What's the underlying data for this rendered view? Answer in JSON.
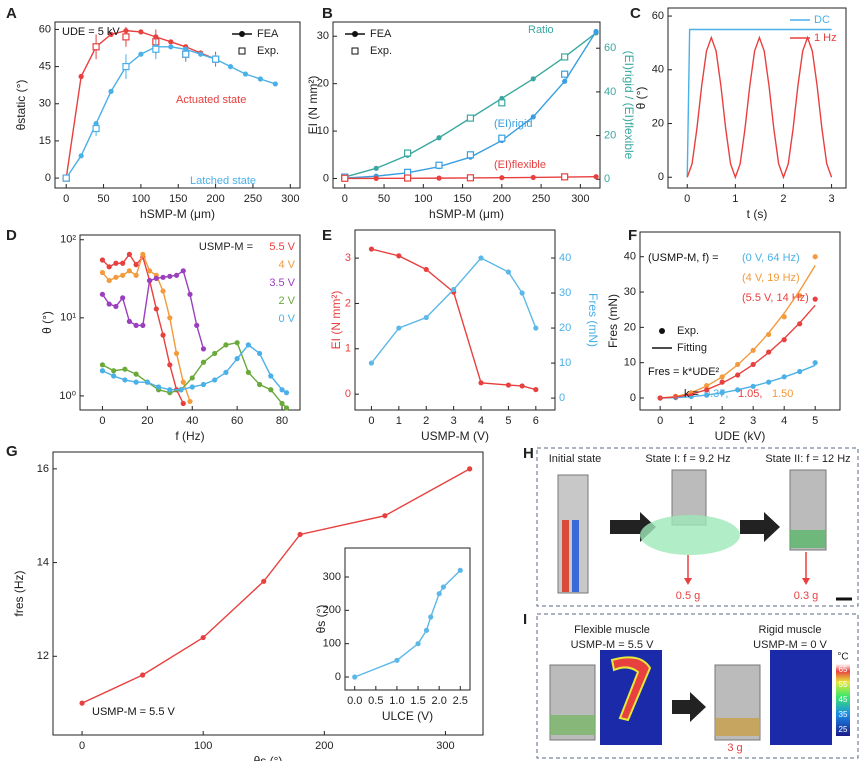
{
  "chart_data": [
    {
      "type": "line",
      "label": "A",
      "xlabel": "hSMP-M (μm)",
      "ylabel": "θstatic (°)",
      "xlim": [
        -15,
        313
      ],
      "ylim": [
        -4,
        63
      ],
      "xticks": [
        0,
        50,
        100,
        150,
        200,
        250,
        300
      ],
      "yticks": [
        0,
        15,
        30,
        45,
        60
      ],
      "legend": "upper right",
      "legend_entries": [
        "FEA",
        "Exp."
      ],
      "annotations": [
        "UDE = 5 kV",
        "Actuated state",
        "Latched state"
      ],
      "series": [
        {
          "color": "#e8403f",
          "marker": "circle",
          "line": true,
          "x": [
            0,
            20,
            40,
            60,
            80,
            100,
            120,
            140,
            160,
            180,
            200
          ],
          "values": [
            0,
            41,
            53,
            58,
            59.5,
            59,
            57,
            55,
            53,
            50.5,
            48
          ]
        },
        {
          "color": "#e8403f",
          "marker": "square",
          "line": false,
          "x": [
            0,
            40,
            80,
            120,
            160,
            200
          ],
          "values": [
            0,
            53,
            57,
            55,
            50,
            48
          ],
          "errors": [
            0,
            5,
            4,
            5,
            3,
            3
          ]
        },
        {
          "color": "#4ab0e8",
          "marker": "circle",
          "line": true,
          "x": [
            0,
            20,
            40,
            60,
            80,
            100,
            120,
            140,
            160,
            180,
            200,
            220,
            240,
            260,
            280
          ],
          "values": [
            0,
            9,
            22,
            35,
            45,
            50,
            53,
            53,
            52,
            50,
            48,
            45,
            42,
            40,
            38
          ]
        },
        {
          "color": "#4ab0e8",
          "marker": "square",
          "line": false,
          "x": [
            0,
            40,
            80,
            120,
            160,
            200
          ],
          "values": [
            0,
            20,
            45,
            52,
            50,
            48
          ],
          "errors": [
            0,
            3,
            5,
            4,
            3,
            2
          ]
        }
      ]
    },
    {
      "type": "line",
      "label": "B",
      "xlabel": "hSMP-M (μm)",
      "ylabel": "EI (N mm²)",
      "y2label": "(EI)rigid / (EI)flexible",
      "xlim": [
        -15,
        325
      ],
      "ylim": [
        -2,
        33
      ],
      "y2lim": [
        -4,
        72
      ],
      "xticks": [
        0,
        50,
        100,
        150,
        200,
        250,
        300
      ],
      "yticks": [
        0,
        10,
        20,
        30
      ],
      "y2ticks": [
        0,
        20,
        40,
        60
      ],
      "legend": "upper left",
      "legend_entries": [
        "FEA",
        "Exp."
      ],
      "series": [
        {
          "label": "Ratio",
          "axis": "y2",
          "color": "#3aa8a0",
          "marker": "circle",
          "line": true,
          "x": [
            0,
            40,
            80,
            120,
            160,
            200,
            240,
            280,
            320
          ],
          "values": [
            1,
            5,
            11,
            19,
            28,
            37,
            46,
            56,
            67
          ]
        },
        {
          "axis": "y2",
          "color": "#3aa8a0",
          "marker": "square",
          "line": false,
          "x": [
            0,
            80,
            160,
            200,
            280
          ],
          "values": [
            1,
            12,
            28,
            35,
            56
          ]
        },
        {
          "label": "(EI)rigid",
          "color": "#3a9fe0",
          "marker": "circle",
          "line": true,
          "x": [
            0,
            40,
            80,
            120,
            160,
            200,
            240,
            280,
            320
          ],
          "values": [
            0.1,
            0.5,
            1.2,
            2.5,
            4.5,
            8,
            13,
            20.5,
            31
          ]
        },
        {
          "color": "#3a9fe0",
          "marker": "square",
          "line": false,
          "x": [
            0,
            80,
            120,
            160,
            200,
            280
          ],
          "values": [
            0.3,
            1.3,
            2.8,
            5,
            8.5,
            22
          ]
        },
        {
          "label": "(EI)flexible",
          "color": "#e8403f",
          "marker": "circle",
          "line": true,
          "x": [
            0,
            40,
            80,
            120,
            160,
            200,
            240,
            280,
            320
          ],
          "values": [
            0.02,
            0.03,
            0.05,
            0.08,
            0.12,
            0.17,
            0.23,
            0.3,
            0.38
          ]
        },
        {
          "color": "#e8403f",
          "marker": "square",
          "line": false,
          "x": [
            0,
            80,
            160,
            280
          ],
          "values": [
            0.05,
            0.1,
            0.15,
            0.35
          ]
        }
      ]
    },
    {
      "type": "line",
      "label": "C",
      "xlabel": "t (s)",
      "ylabel": "θ (°)",
      "xlim": [
        -0.4,
        3.3
      ],
      "ylim": [
        -4,
        63
      ],
      "xticks": [
        0,
        1,
        2,
        3
      ],
      "yticks": [
        0,
        20,
        40,
        60
      ],
      "legend": "upper right",
      "series": [
        {
          "name": "DC",
          "color": "#4ab0e8",
          "marker": "none",
          "line": true,
          "x": [
            0,
            0.05,
            3
          ],
          "values": [
            0,
            55,
            55
          ]
        },
        {
          "name": "1 Hz",
          "color": "#e8403f",
          "marker": "none",
          "line": true,
          "x": [
            0,
            0.1,
            0.2,
            0.3,
            0.4,
            0.5,
            0.6,
            0.7,
            0.8,
            0.9,
            1,
            1.1,
            1.2,
            1.3,
            1.4,
            1.5,
            1.6,
            1.7,
            1.8,
            1.9,
            2,
            2.1,
            2.2,
            2.3,
            2.4,
            2.5,
            2.6,
            2.7,
            2.8,
            2.9,
            3
          ],
          "values": [
            0,
            5,
            18,
            34,
            47,
            52,
            47,
            34,
            18,
            5,
            0,
            5,
            18,
            34,
            47,
            52,
            47,
            34,
            18,
            5,
            0,
            5,
            18,
            34,
            47,
            52,
            47,
            34,
            18,
            5,
            0
          ]
        }
      ]
    },
    {
      "type": "line",
      "label": "D",
      "xlabel": "f (Hz)",
      "ylabel": "θ (°)",
      "ylog": true,
      "xlim": [
        -10,
        88
      ],
      "ylim": [
        0.66,
        115
      ],
      "xticks": [
        0,
        20,
        40,
        60,
        80
      ],
      "yticks": [
        {
          "value": 1,
          "label": "10⁰"
        },
        {
          "value": 10,
          "label": "10¹"
        },
        {
          "value": 100,
          "label": "10²"
        }
      ],
      "legend": "upper right",
      "legend_title": "USMP-M =",
      "series": [
        {
          "name": "5.5 V",
          "color": "#e8403f",
          "marker": "circle",
          "line": true,
          "x": [
            0,
            3,
            6,
            9,
            12,
            15,
            18,
            21,
            24,
            27,
            30,
            33,
            36
          ],
          "values": [
            55,
            45,
            50,
            50,
            65,
            48,
            60,
            30,
            13,
            6,
            2.5,
            1.2,
            0.8
          ]
        },
        {
          "name": "4 V",
          "color": "#f39a3c",
          "marker": "circle",
          "line": true,
          "x": [
            0,
            3,
            6,
            9,
            12,
            15,
            18,
            21,
            24,
            27,
            30,
            33,
            36,
            39
          ],
          "values": [
            38,
            30,
            33,
            35,
            40,
            35,
            65,
            40,
            35,
            22,
            10,
            3.5,
            1.5,
            0.85
          ]
        },
        {
          "name": "3.5 V",
          "color": "#9b3fbf",
          "marker": "circle",
          "line": true,
          "x": [
            0,
            3,
            6,
            9,
            12,
            15,
            18,
            21,
            24,
            27,
            30,
            33,
            36,
            39,
            42,
            45
          ],
          "values": [
            20,
            15,
            14,
            18,
            9,
            8,
            8,
            30,
            32,
            33,
            34,
            35,
            40,
            20,
            8,
            4
          ]
        },
        {
          "name": "2 V",
          "color": "#6aaa3a",
          "marker": "circle",
          "line": true,
          "x": [
            0,
            5,
            10,
            15,
            20,
            25,
            30,
            35,
            40,
            45,
            50,
            55,
            60,
            65,
            70,
            75,
            80,
            82
          ],
          "values": [
            2.5,
            2.1,
            2.2,
            1.9,
            1.5,
            1.2,
            1.1,
            1.2,
            1.7,
            2.7,
            3.5,
            4.5,
            4.8,
            2,
            1.4,
            1.2,
            0.8,
            0.7
          ]
        },
        {
          "name": "0 V",
          "color": "#4ab0e8",
          "marker": "circle",
          "line": true,
          "x": [
            0,
            5,
            10,
            15,
            20,
            25,
            30,
            35,
            40,
            45,
            50,
            55,
            60,
            65,
            70,
            75,
            80,
            82
          ],
          "values": [
            2.1,
            1.8,
            1.6,
            1.5,
            1.5,
            1.3,
            1.2,
            1.2,
            1.3,
            1.4,
            1.6,
            2,
            3,
            4.5,
            3.5,
            1.8,
            1.2,
            1.1
          ]
        }
      ]
    },
    {
      "type": "line",
      "label": "E",
      "xlabel": "USMP-M (V)",
      "ylabel": "EI (N mm²)",
      "y2label": "Fres (mN)",
      "xlim": [
        -0.6,
        6.7
      ],
      "ylim": [
        -0.35,
        3.62
      ],
      "y2lim": [
        -3.4,
        48
      ],
      "xticks": [
        0,
        1,
        2,
        3,
        4,
        5,
        6
      ],
      "yticks": [
        0,
        1,
        2,
        3
      ],
      "y2ticks": [
        0,
        10,
        20,
        30,
        40
      ],
      "series": [
        {
          "color": "#e8403f",
          "marker": "circle",
          "line": true,
          "x": [
            0,
            1,
            2,
            3,
            4,
            5,
            5.5,
            6
          ],
          "values": [
            3.2,
            3.05,
            2.75,
            2.25,
            0.25,
            0.2,
            0.18,
            0.1
          ]
        },
        {
          "axis": "y2",
          "color": "#5bb8e8",
          "marker": "circle",
          "line": true,
          "x": [
            0,
            1,
            2,
            3,
            4,
            5,
            5.5,
            6
          ],
          "values": [
            10,
            20,
            23,
            31,
            40,
            36,
            30,
            20
          ]
        }
      ]
    },
    {
      "type": "line",
      "label": "F",
      "xlabel": "UDE (kV)",
      "ylabel": "Fres (mN)",
      "xlim": [
        -0.65,
        5.8
      ],
      "ylim": [
        -3.4,
        47
      ],
      "xticks": [
        0,
        1,
        2,
        3,
        4,
        5
      ],
      "yticks": [
        0,
        10,
        20,
        30,
        40
      ],
      "legend": "center left",
      "legend_entries": [
        "Exp.",
        "Fitting"
      ],
      "annotations": [
        "(USMP-M, f) =",
        "Fres = k*UDE²",
        "k ="
      ],
      "series": [
        {
          "label": "(0 V, 64 Hz)",
          "k_label": "0.37,",
          "color": "#4ab0e8",
          "marker": "circle",
          "line": false,
          "x": [
            0,
            0.5,
            1,
            1.5,
            2,
            2.5,
            3,
            3.5,
            4,
            4.5,
            5
          ],
          "values": [
            0,
            0.1,
            0.4,
            0.8,
            1.5,
            2.3,
            3.3,
            4.5,
            6,
            7.5,
            10
          ]
        },
        {
          "label": "(4 V, 19 Hz)",
          "k_label": "1.50",
          "color": "#f39a3c",
          "marker": "circle",
          "line": false,
          "x": [
            0,
            0.5,
            1,
            1.5,
            2,
            2.5,
            3,
            3.5,
            4,
            4.5,
            5
          ],
          "values": [
            0,
            0.5,
            1.5,
            3.5,
            6,
            9.5,
            13.5,
            18,
            23,
            29,
            40
          ]
        },
        {
          "label": "(5.5 V, 14 Hz)",
          "k_label": "1.05,",
          "color": "#e8403f",
          "marker": "circle",
          "line": false,
          "x": [
            0,
            0.5,
            1,
            1.5,
            2,
            2.5,
            3,
            3.5,
            4,
            4.5,
            5
          ],
          "values": [
            0,
            0.3,
            1,
            2.3,
            4.5,
            6.5,
            9.5,
            13,
            16.5,
            21,
            28
          ]
        },
        {
          "color": "#4ab0e8",
          "marker": "none",
          "line": true,
          "x": [
            0,
            0.5,
            1,
            1.5,
            2,
            2.5,
            3,
            3.5,
            4,
            4.5,
            5
          ],
          "values": [
            0,
            0.09,
            0.37,
            0.83,
            1.48,
            2.31,
            3.33,
            4.53,
            5.92,
            7.49,
            9.25
          ]
        },
        {
          "color": "#f39a3c",
          "marker": "none",
          "line": true,
          "x": [
            0,
            0.5,
            1,
            1.5,
            2,
            2.5,
            3,
            3.5,
            4,
            4.5,
            5
          ],
          "values": [
            0,
            0.38,
            1.5,
            3.38,
            6,
            9.38,
            13.5,
            18.38,
            24,
            30.38,
            37.5
          ]
        },
        {
          "color": "#e8403f",
          "marker": "none",
          "line": true,
          "x": [
            0,
            0.5,
            1,
            1.5,
            2,
            2.5,
            3,
            3.5,
            4,
            4.5,
            5
          ],
          "values": [
            0,
            0.26,
            1.05,
            2.36,
            4.2,
            6.56,
            9.45,
            12.86,
            16.8,
            21.26,
            26.25
          ]
        }
      ]
    },
    {
      "type": "line",
      "label": "G",
      "xlabel": "θs (°)",
      "ylabel": "fres (Hz)",
      "xlim": [
        -24,
        331
      ],
      "ylim": [
        10.32,
        16.36
      ],
      "xticks": [
        0,
        100,
        200,
        300
      ],
      "yticks": [
        12,
        14,
        16
      ],
      "annotations": [
        "USMP-M = 5.5 V"
      ],
      "series": [
        {
          "color": "#e8403f",
          "marker": "circle",
          "line": true,
          "x": [
            0,
            50,
            100,
            150,
            180,
            250,
            320
          ],
          "values": [
            11,
            11.6,
            12.4,
            13.6,
            14.6,
            15,
            16
          ]
        }
      ]
    },
    {
      "type": "line",
      "xlabel": "ULCE (V)",
      "ylabel": "θs (°)",
      "xlim": [
        -0.23,
        2.73
      ],
      "ylim": [
        -39,
        387
      ],
      "xticks": [
        {
          "value": 0,
          "label": "0.0"
        },
        0.5,
        {
          "value": 1,
          "label": "1.0"
        },
        1.5,
        {
          "value": 2,
          "label": "2.0"
        },
        2.5
      ],
      "yticks": [
        0,
        100,
        200,
        300
      ],
      "series": [
        {
          "color": "#5bb8e8",
          "marker": "circle",
          "line": true,
          "x": [
            0,
            1,
            1.5,
            1.7,
            1.8,
            2,
            2.1,
            2.5
          ],
          "values": [
            0,
            50,
            100,
            140,
            180,
            250,
            270,
            320
          ]
        }
      ]
    }
  ],
  "photo_panels": {
    "H": {
      "label": "H",
      "texts": [
        "Initial state",
        "State I: f = 9.2 Hz",
        "State II: f = 12 Hz",
        "0.5 g",
        "0.3 g"
      ]
    },
    "I": {
      "label": "I",
      "texts": [
        "Flexible muscle",
        "USMP-M = 5.5 V",
        "Rigid muscle",
        "USMP-M = 0 V",
        "3 g"
      ],
      "colorbar": {
        "unit": "°C",
        "lim": [
          21,
          69
        ],
        "ticks": [
          65,
          55,
          45,
          35,
          25
        ]
      }
    }
  }
}
